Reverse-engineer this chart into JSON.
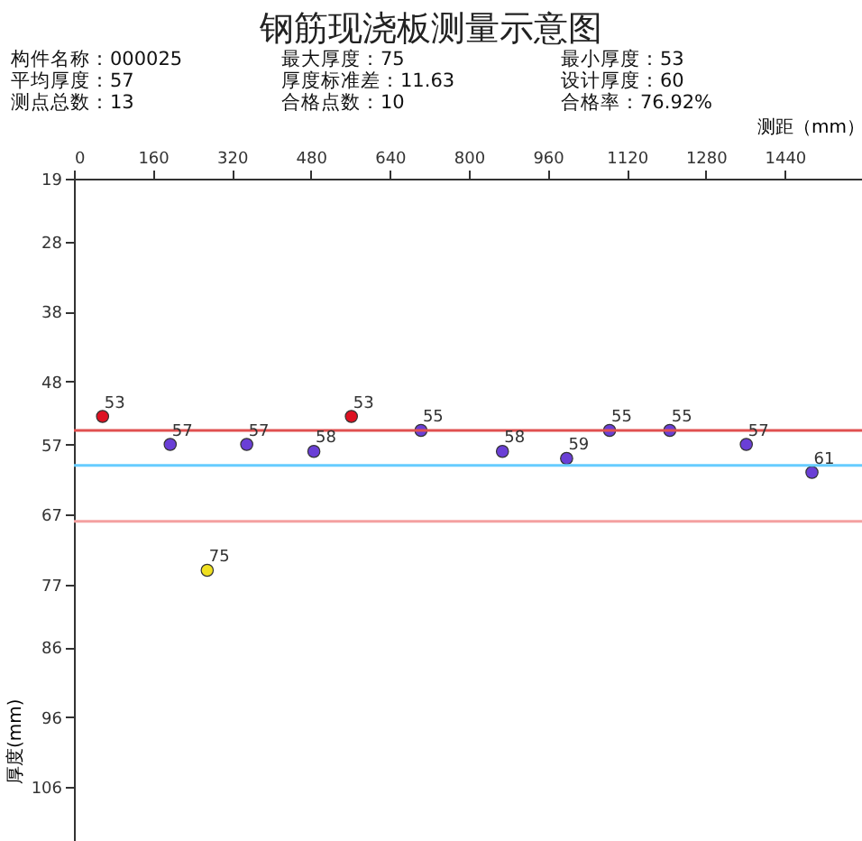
{
  "chart_data": {
    "type": "scatter",
    "title": "钢筋现浇板测量示意图",
    "annotations": [
      "构件名称：000025",
      "最大厚度：75",
      "最小厚度：53",
      "平均厚度：57",
      "厚度标准差：11.63",
      "设计厚度：60",
      "测点总数：13",
      "合格点数：10",
      "合格率：76.92%"
    ],
    "xlabel": "测距（mm）",
    "ylabel": "厚度(mm)",
    "x": [
      58,
      195,
      270,
      350,
      486,
      562,
      703,
      868,
      998,
      1085,
      1207,
      1362,
      1495
    ],
    "values": [
      53,
      57,
      75,
      57,
      58,
      53,
      55,
      58,
      59,
      55,
      55,
      57,
      61
    ],
    "colors": [
      "#dd1122",
      "#6a3fd6",
      "#f0e020",
      "#6a3fd6",
      "#6a3fd6",
      "#dd1122",
      "#6a3fd6",
      "#6a3fd6",
      "#6a3fd6",
      "#6a3fd6",
      "#6a3fd6",
      "#6a3fd6",
      "#6a3fd6"
    ],
    "data_labels": true,
    "marker": "circle",
    "grid": false,
    "xlim": [
      0,
      1600
    ],
    "xticks": [
      0,
      160,
      320,
      480,
      640,
      800,
      960,
      1120,
      1280,
      1440
    ],
    "ylim": [
      115,
      19
    ],
    "yticks": [
      19,
      28,
      38,
      48,
      57,
      67,
      77,
      86,
      96,
      106
    ],
    "ref_lines": [
      {
        "axis": "y",
        "value": 55,
        "color": "#e05050"
      },
      {
        "axis": "y",
        "value": 60,
        "color": "#66ccff"
      },
      {
        "axis": "y",
        "value": 68,
        "color": "#f4a0a0"
      }
    ]
  }
}
